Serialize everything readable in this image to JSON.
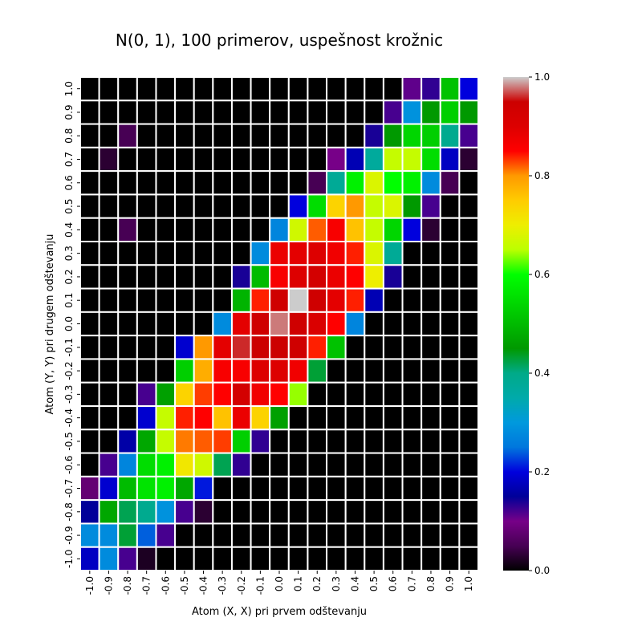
{
  "chart_data": {
    "type": "heatmap",
    "title": "N(0, 1), 100 primerov, uspešnost krožnic",
    "xlabel": "Atom (X, X) pri prvem odštevanju",
    "ylabel": "Atom (Y, Y) pri drugem odštevanju",
    "x_ticks": [
      "-1.0",
      "-0.9",
      "-0.8",
      "-0.7",
      "-0.6",
      "-0.5",
      "-0.4",
      "-0.3",
      "-0.2",
      "-0.1",
      "0.0",
      "0.1",
      "0.2",
      "0.3",
      "0.4",
      "0.5",
      "0.6",
      "0.7",
      "0.8",
      "0.9",
      "1.0"
    ],
    "y_ticks": [
      "1.0",
      "0.9",
      "0.8",
      "0.7",
      "0.6",
      "0.5",
      "0.4",
      "0.3",
      "0.2",
      "0.1",
      "0.0",
      "-0.1",
      "-0.2",
      "-0.3",
      "-0.4",
      "-0.5",
      "-0.6",
      "-0.7",
      "-0.8",
      "-0.9",
      "-1.0"
    ],
    "colorbar": {
      "range": [
        0,
        1
      ],
      "ticks": [
        "0.0",
        "0.2",
        "0.4",
        "0.6",
        "0.8",
        "1.0"
      ],
      "colormap": "nipy_spectral"
    },
    "grid": true,
    "rows": [
      [
        0,
        0,
        0,
        0,
        0,
        0,
        0,
        0,
        0,
        0,
        0,
        0,
        0,
        0,
        0,
        0,
        0,
        0.11,
        0.13,
        0.51,
        0.2
      ],
      [
        0,
        0,
        0,
        0,
        0,
        0,
        0,
        0,
        0,
        0,
        0,
        0,
        0,
        0,
        0,
        0,
        0.12,
        0.29,
        0.45,
        0.53,
        0.45
      ],
      [
        0,
        0,
        0.05,
        0,
        0,
        0,
        0,
        0,
        0,
        0,
        0,
        0,
        0,
        0,
        0,
        0.14,
        0.45,
        0.54,
        0.53,
        0.39,
        0.12
      ],
      [
        0,
        0.03,
        0,
        0,
        0,
        0,
        0,
        0,
        0,
        0,
        0,
        0,
        0,
        0.1,
        0.17,
        0.37,
        0.66,
        0.66,
        0.55,
        0.18,
        0.03
      ],
      [
        0,
        0,
        0,
        0,
        0,
        0,
        0,
        0,
        0,
        0,
        0,
        0,
        0.05,
        0.38,
        0.58,
        0.68,
        0.6,
        0.58,
        0.28,
        0.05,
        0
      ],
      [
        0,
        0,
        0,
        0,
        0,
        0,
        0,
        0,
        0,
        0,
        0,
        0.2,
        0.55,
        0.74,
        0.8,
        0.66,
        0.68,
        0.45,
        0.12,
        0,
        0
      ],
      [
        0,
        0,
        0.05,
        0,
        0,
        0,
        0,
        0,
        0,
        0,
        0.27,
        0.67,
        0.82,
        0.86,
        0.76,
        0.66,
        0.54,
        0.2,
        0.03,
        0,
        0
      ],
      [
        0,
        0,
        0,
        0,
        0,
        0,
        0,
        0,
        0,
        0.28,
        0.88,
        0.89,
        0.9,
        0.87,
        0.84,
        0.68,
        0.38,
        0,
        0,
        0,
        0
      ],
      [
        0,
        0,
        0,
        0,
        0,
        0,
        0,
        0,
        0.14,
        0.5,
        0.86,
        0.9,
        0.93,
        0.88,
        0.85,
        0.7,
        0.14,
        0,
        0,
        0,
        0
      ],
      [
        0,
        0,
        0,
        0,
        0,
        0,
        0,
        0,
        0.49,
        0.84,
        0.94,
        1.0,
        0.94,
        0.89,
        0.84,
        0.17,
        0,
        0,
        0,
        0,
        0
      ],
      [
        0,
        0,
        0,
        0,
        0,
        0,
        0,
        0.28,
        0.89,
        0.94,
        0.98,
        0.94,
        0.91,
        0.85,
        0.27,
        0,
        0,
        0,
        0,
        0,
        0
      ],
      [
        0,
        0,
        0,
        0,
        0,
        0.19,
        0.8,
        0.89,
        0.96,
        0.95,
        0.95,
        0.94,
        0.84,
        0.51,
        0,
        0,
        0,
        0,
        0,
        0,
        0
      ],
      [
        0,
        0,
        0,
        0,
        0,
        0.53,
        0.78,
        0.86,
        0.86,
        0.9,
        0.9,
        0.87,
        0.43,
        0,
        0,
        0,
        0,
        0,
        0,
        0,
        0
      ],
      [
        0,
        0,
        0,
        0.12,
        0.46,
        0.74,
        0.83,
        0.85,
        0.93,
        0.87,
        0.85,
        0.64,
        0,
        0,
        0,
        0,
        0,
        0,
        0,
        0,
        0
      ],
      [
        0,
        0,
        0,
        0.19,
        0.66,
        0.84,
        0.85,
        0.76,
        0.88,
        0.74,
        0.46,
        0,
        0,
        0,
        0,
        0,
        0,
        0,
        0,
        0,
        0
      ],
      [
        0,
        0,
        0.16,
        0.47,
        0.66,
        0.81,
        0.82,
        0.83,
        0.53,
        0.13,
        0,
        0,
        0,
        0,
        0,
        0,
        0,
        0,
        0,
        0,
        0
      ],
      [
        0,
        0.12,
        0.27,
        0.55,
        0.58,
        0.71,
        0.67,
        0.42,
        0.13,
        0,
        0,
        0,
        0,
        0,
        0,
        0,
        0,
        0,
        0,
        0,
        0
      ],
      [
        0.08,
        0.19,
        0.5,
        0.56,
        0.58,
        0.47,
        0.21,
        0,
        0,
        0,
        0,
        0,
        0,
        0,
        0,
        0,
        0,
        0,
        0,
        0,
        0
      ],
      [
        0.15,
        0.47,
        0.42,
        0.39,
        0.29,
        0.12,
        0.03,
        0,
        0,
        0,
        0,
        0,
        0,
        0,
        0,
        0,
        0,
        0,
        0,
        0,
        0
      ],
      [
        0.28,
        0.28,
        0.43,
        0.24,
        0.12,
        0,
        0,
        0,
        0,
        0,
        0,
        0,
        0,
        0,
        0,
        0,
        0,
        0,
        0,
        0,
        0
      ],
      [
        0.18,
        0.28,
        0.12,
        0.02,
        0,
        0,
        0,
        0,
        0,
        0,
        0,
        0,
        0,
        0,
        0,
        0,
        0,
        0,
        0,
        0,
        0
      ]
    ]
  }
}
